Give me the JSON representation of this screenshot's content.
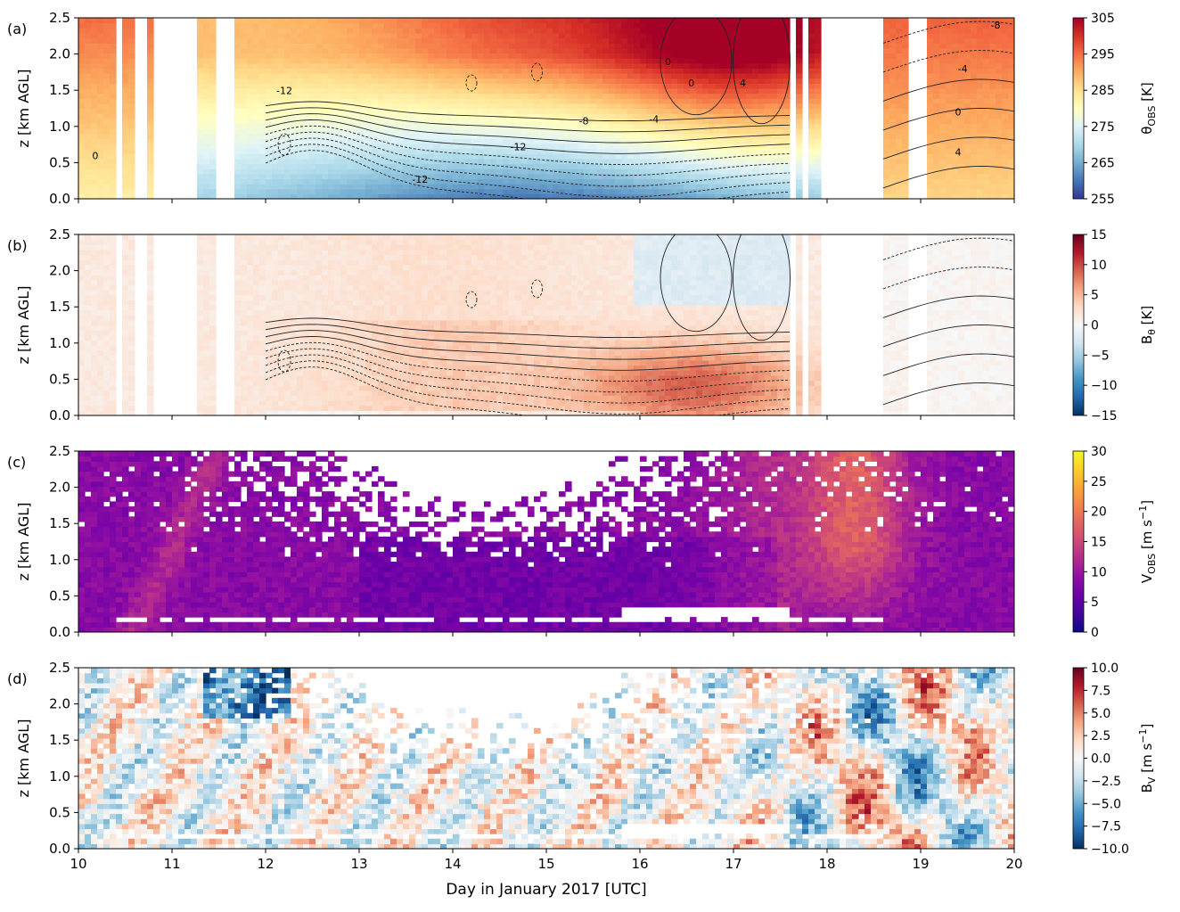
{
  "figure": {
    "xlabel": "Day in January 2017 [UTC]",
    "xticks": [
      10,
      11,
      12,
      13,
      14,
      15,
      16,
      17,
      18,
      19,
      20
    ],
    "xlim": [
      10,
      20
    ],
    "ylabel": "z [km AGL]",
    "yticks": [
      0.0,
      0.5,
      1.0,
      1.5,
      2.0,
      2.5
    ],
    "ylim": [
      0.0,
      2.5
    ]
  },
  "chart_data": [
    {
      "type": "heatmap",
      "panel": "(a)",
      "colormap": "RdYlBu_r",
      "colorbar_label": "θOBS [K]",
      "colorbar": {
        "ticks": [
          255,
          265,
          275,
          285,
          295,
          305
        ],
        "range": [
          255,
          305
        ]
      },
      "contour_labels": [
        {
          "day": 10.18,
          "z": 0.55,
          "text": "0"
        },
        {
          "day": 12.2,
          "z": 1.45,
          "text": "-12"
        },
        {
          "day": 13.65,
          "z": 0.22,
          "text": "-12"
        },
        {
          "day": 14.7,
          "z": 0.67,
          "text": "-12"
        },
        {
          "day": 15.4,
          "z": 1.03,
          "text": "-8"
        },
        {
          "day": 16.15,
          "z": 1.05,
          "text": "-4"
        },
        {
          "day": 16.3,
          "z": 1.85,
          "text": "0"
        },
        {
          "day": 16.55,
          "z": 1.55,
          "text": "0"
        },
        {
          "day": 17.1,
          "z": 1.55,
          "text": "4"
        },
        {
          "day": 19.4,
          "z": 1.15,
          "text": "0"
        },
        {
          "day": 19.4,
          "z": 0.6,
          "text": "4"
        },
        {
          "day": 19.45,
          "z": 1.75,
          "text": "-4"
        },
        {
          "day": 19.8,
          "z": 2.35,
          "text": "-8"
        }
      ],
      "data_gaps": [
        [
          10.4,
          10.46
        ],
        [
          10.6,
          10.75
        ],
        [
          10.78,
          11.27
        ],
        [
          11.48,
          11.66
        ],
        [
          17.63,
          17.67
        ],
        [
          17.73,
          17.8
        ],
        [
          17.93,
          18.59
        ],
        [
          18.84,
          19.04
        ]
      ]
    },
    {
      "type": "heatmap",
      "panel": "(b)",
      "colormap": "RdBu_r",
      "colorbar_label": "Bθ [K]",
      "colorbar": {
        "ticks": [
          -15,
          -10,
          -5,
          0,
          5,
          10,
          15
        ],
        "range": [
          -15,
          15
        ]
      },
      "data_gaps": [
        [
          10.4,
          10.46
        ],
        [
          10.6,
          10.75
        ],
        [
          10.78,
          11.27
        ],
        [
          11.48,
          11.66
        ],
        [
          17.63,
          17.67
        ],
        [
          17.73,
          17.8
        ],
        [
          17.93,
          18.59
        ],
        [
          18.84,
          19.04
        ]
      ]
    },
    {
      "type": "heatmap",
      "panel": "(c)",
      "colormap": "plasma",
      "colorbar_label": "VOBS [m s−1]",
      "colorbar": {
        "ticks": [
          0,
          5,
          10,
          15,
          20,
          25,
          30
        ],
        "range": [
          0,
          30
        ]
      }
    },
    {
      "type": "heatmap",
      "panel": "(d)",
      "colormap": "RdBu_r",
      "colorbar_label": "BV [m s−1]",
      "colorbar": {
        "ticks": [
          -10.0,
          -7.5,
          -5.0,
          -2.5,
          0.0,
          2.5,
          5.0,
          7.5,
          10.0
        ],
        "range": [
          -10,
          10
        ]
      }
    }
  ],
  "panel_labels": [
    "(a)",
    "(b)",
    "(c)",
    "(d)"
  ],
  "colorbar_labels": {
    "a": {
      "main": "θ",
      "sub": "OBS",
      "unit": " [K]"
    },
    "b": {
      "main": "B",
      "sub": "θ",
      "unit": " [K]"
    },
    "c": {
      "main": "V",
      "sub": "OBS",
      "unit": " [m s",
      "sup": "−1",
      "close": "]"
    },
    "d": {
      "main": "B",
      "sub": "V",
      "unit": " [m s",
      "sup": "−1",
      "close": "]"
    }
  },
  "colors": {
    "frame": "#000000",
    "background": "#ffffff"
  }
}
